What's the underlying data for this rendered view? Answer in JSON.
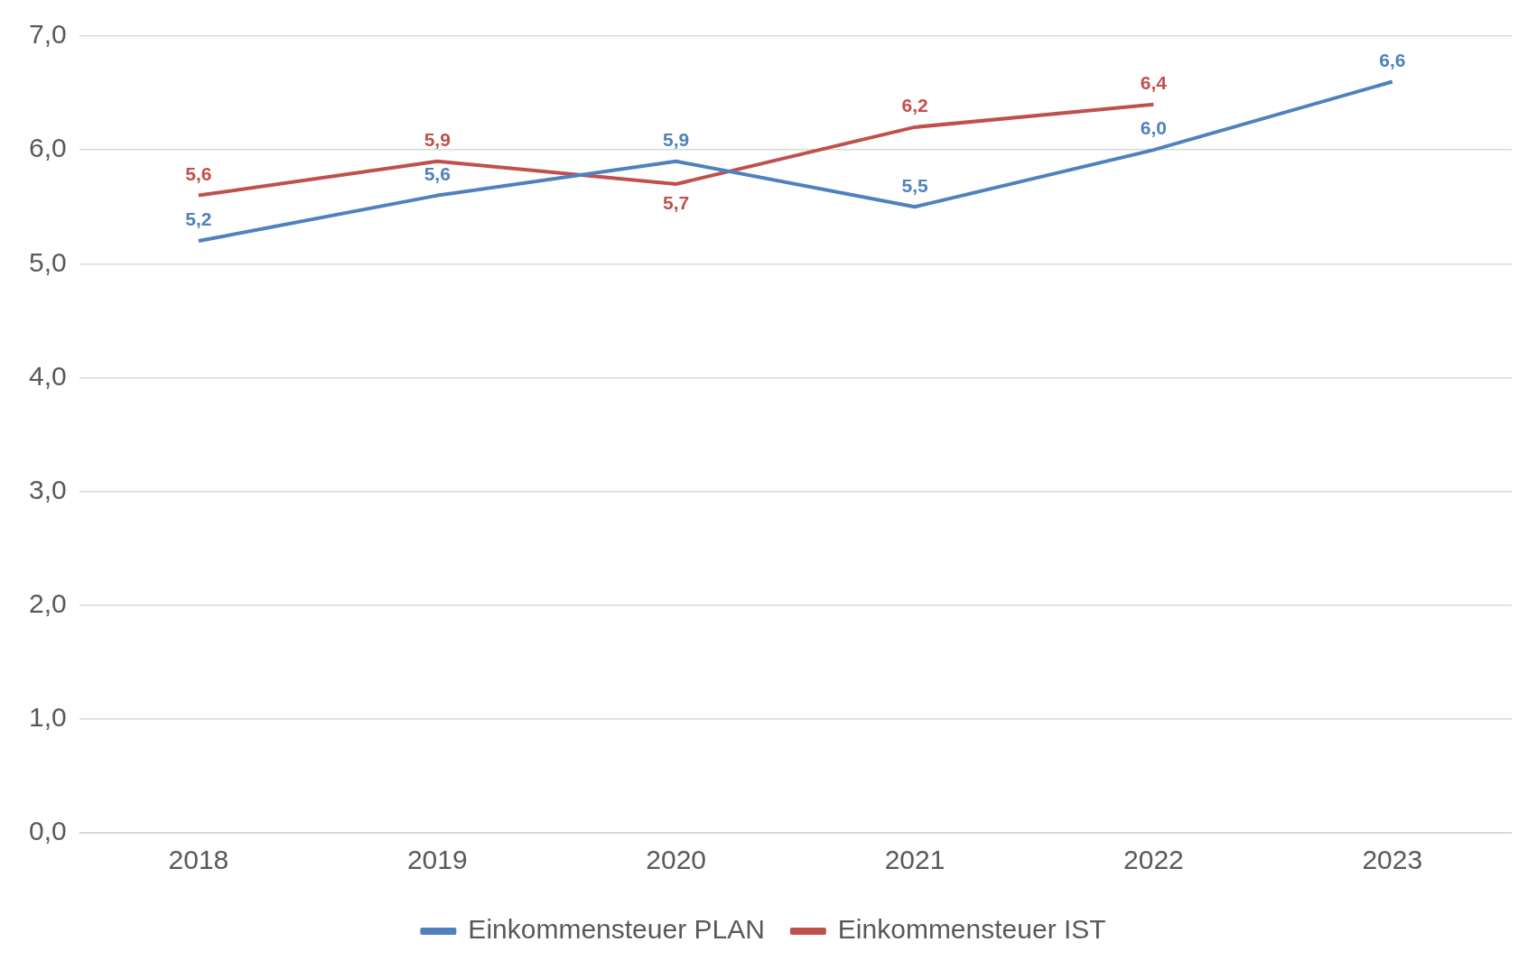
{
  "chart_data": {
    "type": "line",
    "categories": [
      "2018",
      "2019",
      "2020",
      "2021",
      "2022",
      "2023"
    ],
    "series": [
      {
        "name": "Einkommensteuer PLAN",
        "color": "#4f81bd",
        "values": [
          5.2,
          5.6,
          5.9,
          5.5,
          6.0,
          6.6
        ],
        "value_labels": [
          "5,2",
          "5,6",
          "5,9",
          "5,5",
          "6,0",
          "6,6"
        ]
      },
      {
        "name": "Einkommensteuer IST",
        "color": "#c0504d",
        "values": [
          5.6,
          5.9,
          5.7,
          6.2,
          6.4,
          null
        ],
        "value_labels": [
          "5,6",
          "5,9",
          "5,7",
          "6,2",
          "6,4",
          null
        ]
      }
    ],
    "ylim": [
      0,
      7
    ],
    "yticks": [
      {
        "value": 0,
        "label": "0,0"
      },
      {
        "value": 1,
        "label": "1,0"
      },
      {
        "value": 2,
        "label": "2,0"
      },
      {
        "value": 3,
        "label": "3,0"
      },
      {
        "value": 4,
        "label": "4,0"
      },
      {
        "value": 5,
        "label": "5,0"
      },
      {
        "value": 6,
        "label": "6,0"
      },
      {
        "value": 7,
        "label": "7,0"
      }
    ],
    "grid": "y",
    "legend": "bottom",
    "marker": "none",
    "line_style": "solid"
  }
}
